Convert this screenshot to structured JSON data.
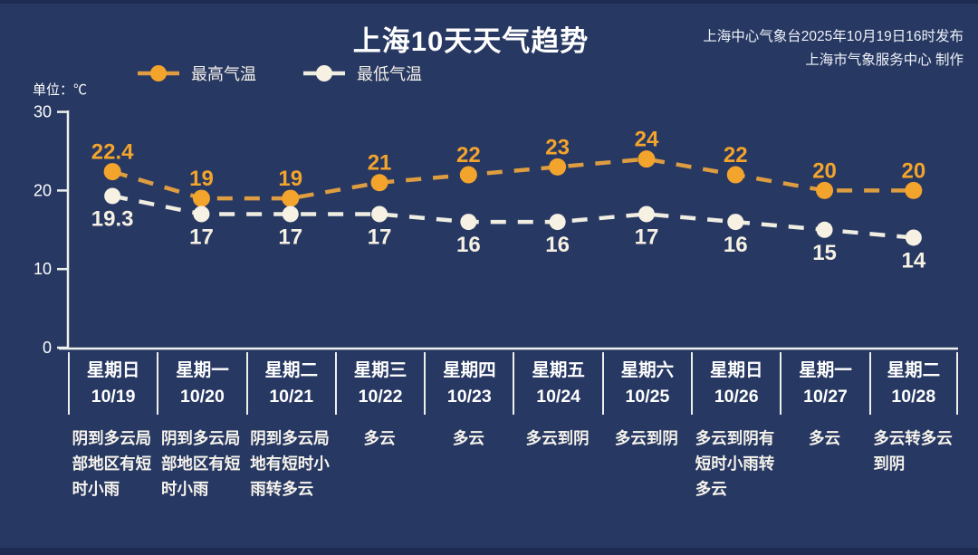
{
  "header": {
    "title": "上海10天天气趋势",
    "publisher_line1": "上海中心气象台2025年10月19日16时发布",
    "publisher_line2": "上海市气象服务中心 制作",
    "unit_label": "单位：℃"
  },
  "colors": {
    "background": "#273862",
    "high_marker": "#f3a42c",
    "high_line": "#dd9d40",
    "low_marker": "#f6f1e3",
    "low_line": "#efece1",
    "axis": "#eef0ec",
    "tick_text": "#ffffff"
  },
  "chart_data": {
    "type": "line",
    "title": "上海10天天气趋势",
    "ylabel": "单位：℃",
    "ylim": [
      0,
      30
    ],
    "yticks": [
      0,
      10,
      20,
      30
    ],
    "grid": false,
    "legend_position": "top-left",
    "line_style": "dashed",
    "categories": [
      {
        "weekday": "星期日",
        "date": "10/19",
        "weather": "阴到多云局部地区有短时小雨"
      },
      {
        "weekday": "星期一",
        "date": "10/20",
        "weather": "阴到多云局部地区有短时小雨"
      },
      {
        "weekday": "星期二",
        "date": "10/21",
        "weather": "阴到多云局地有短时小雨转多云"
      },
      {
        "weekday": "星期三",
        "date": "10/22",
        "weather": "多云"
      },
      {
        "weekday": "星期四",
        "date": "10/23",
        "weather": "多云"
      },
      {
        "weekday": "星期五",
        "date": "10/24",
        "weather": "多云到阴"
      },
      {
        "weekday": "星期六",
        "date": "10/25",
        "weather": "多云到阴"
      },
      {
        "weekday": "星期日",
        "date": "10/26",
        "weather": "多云到阴有短时小雨转多云"
      },
      {
        "weekday": "星期一",
        "date": "10/27",
        "weather": "多云"
      },
      {
        "weekday": "星期二",
        "date": "10/28",
        "weather": "多云转多云到阴"
      }
    ],
    "series": [
      {
        "name": "最高气温",
        "values": [
          22.4,
          19,
          19,
          21,
          22,
          23,
          24,
          22,
          20,
          20
        ]
      },
      {
        "name": "最低气温",
        "values": [
          19.3,
          17,
          17,
          17,
          16,
          16,
          17,
          16,
          15,
          14
        ]
      }
    ]
  }
}
